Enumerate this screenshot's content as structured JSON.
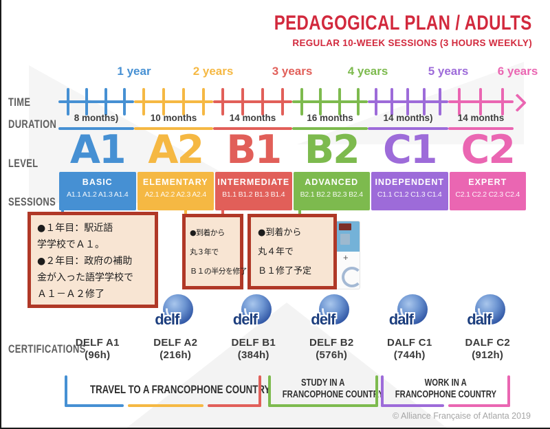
{
  "header": {
    "title": "PEDAGOGICAL PLAN / ADULTS",
    "subtitle": "REGULAR 10-WEEK SESSIONS (3 HOURS WEEKLY)"
  },
  "labels": {
    "time": "TIME",
    "duration": "DURATION",
    "level": "LEVEL",
    "sessions": "SESSIONS",
    "certifications": "CERTIFICATIONS"
  },
  "timeline": {
    "years": [
      {
        "label": "1 year",
        "color": "#4690d3"
      },
      {
        "label": "2 years",
        "color": "#f5b843"
      },
      {
        "label": "3 years",
        "color": "#e15f59"
      },
      {
        "label": "4 years",
        "color": "#7dba4e"
      },
      {
        "label": "5 years",
        "color": "#9d6bd9"
      },
      {
        "label": "6 years",
        "color": "#ea66b2"
      }
    ]
  },
  "columns": [
    {
      "level": "A1",
      "name": "BASIC",
      "duration": "8 months)",
      "sessions": "A1.1 A1.2 A1.3 A1.4",
      "cert_name": "DELF A1",
      "cert_hours": "(96h)",
      "logo": null,
      "color": "#4690d3"
    },
    {
      "level": "A2",
      "name": "ELEMENTARY",
      "duration": "10 months",
      "sessions": "A2.1 A2.2 A2.3 A2.4",
      "cert_name": "DELF A2",
      "cert_hours": "(216h)",
      "logo": "delf",
      "color": "#f5b843"
    },
    {
      "level": "B1",
      "name": "INTERMEDIATE",
      "duration": "14 months",
      "sessions": "B1.1 B1.2 B1.3 B1.4",
      "cert_name": "DELF B1",
      "cert_hours": "(384h)",
      "logo": "delf",
      "color": "#e15f59"
    },
    {
      "level": "B2",
      "name": "ADVANCED",
      "duration": "16 months",
      "sessions": "B2.1 B2.2 B2.3 B2.4",
      "cert_name": "DELF B2",
      "cert_hours": "(576h)",
      "logo": "delf",
      "color": "#7dba4e"
    },
    {
      "level": "C1",
      "name": "INDEPENDENT",
      "duration": "14 months)",
      "sessions": "C1.1 C1.2 C1.3 C1.4",
      "cert_name": "DALF C1",
      "cert_hours": "(744h)",
      "logo": "dalf",
      "color": "#9d6bd9"
    },
    {
      "level": "C2",
      "name": "EXPERT",
      "duration": "14 months",
      "sessions": "C2.1 C2.2 C2.3 C2.4",
      "cert_name": "DALF C2",
      "cert_hours": "(912h)",
      "logo": "dalf",
      "color": "#ea66b2"
    }
  ],
  "annotations": [
    {
      "lines": [
        "●１年目：駅近語",
        "学学校でＡ１。",
        "●２年目：政府の補助",
        "金が入った語学学校で",
        "Ａ１－Ａ２修了"
      ]
    },
    {
      "lines": [
        "●到着から",
        "丸３年で",
        "Ｂ１の半分を修了"
      ]
    },
    {
      "lines": [
        "●到着から",
        "丸４年で",
        "Ｂ１修了予定"
      ]
    }
  ],
  "obscured": {
    "plus": "+"
  },
  "goals": [
    {
      "lines": [
        "TRAVEL TO A FRANCOPHONE COUNTRY"
      ],
      "bracket_colors": [
        "#4690d3",
        "#f5b843",
        "#e15f59"
      ]
    },
    {
      "lines": [
        "STUDY IN A",
        "FRANCOPHONE COUNTRY"
      ],
      "bracket_colors": [
        "#7dba4e"
      ]
    },
    {
      "lines": [
        "WORK IN A",
        "FRANCOPHONE COUNTRY"
      ],
      "bracket_colors": [
        "#9d6bd9",
        "#ea66b2"
      ]
    }
  ],
  "footer": {
    "copyright": "© Alliance Française of Atlanta 2019"
  },
  "palette": {
    "title_red": "#d2293d",
    "note_border": "#b03827",
    "note_fill": "#f8e5d3",
    "label_gray": "#5e5e5e",
    "logo_blue": "#1c3e7e"
  }
}
